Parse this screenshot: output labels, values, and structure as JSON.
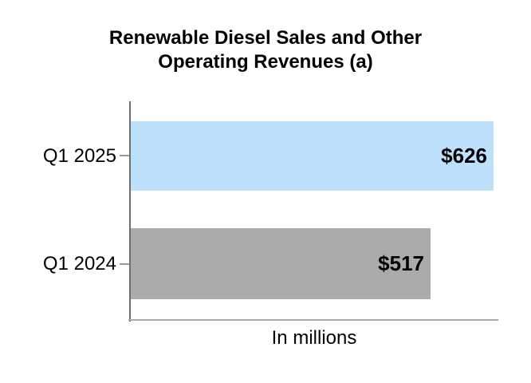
{
  "title": {
    "line1": "Renewable Diesel Sales and Other",
    "line2": "Operating Revenues (a)"
  },
  "chart_data": {
    "type": "bar",
    "orientation": "horizontal",
    "title": "Renewable Diesel Sales and Other Operating Revenues (a)",
    "categories": [
      "Q1 2025",
      "Q1 2024"
    ],
    "values": [
      626,
      517
    ],
    "value_labels": [
      "$626",
      "$517"
    ],
    "xlabel": "In millions",
    "ylabel": "",
    "xlim": [
      0,
      635
    ],
    "grid": false,
    "legend": false,
    "bar_colors": [
      "#BDE1FB",
      "#ABABAB"
    ],
    "value_label_color": "#000000",
    "axis_colors": {
      "y_axis": "#6E6E6E",
      "x_axis": "#A9A9A9",
      "tick": "#999999"
    }
  }
}
